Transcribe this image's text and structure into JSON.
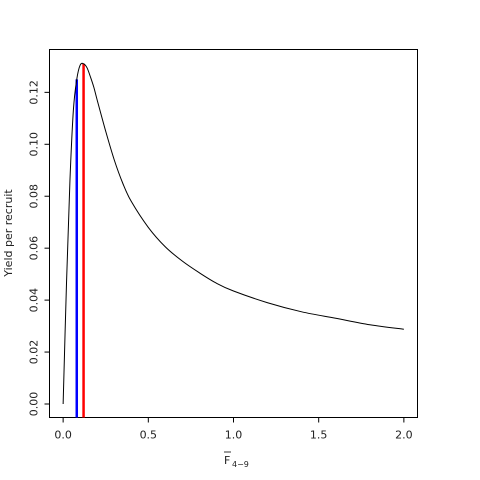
{
  "chart_data": {
    "type": "line",
    "title": "",
    "ylabel": "Yield per recruit",
    "xlabel": {
      "base": "F",
      "overline": true,
      "subscript": "4−9"
    },
    "xlim": [
      -0.08,
      2.08
    ],
    "ylim": [
      -0.0052,
      0.1365
    ],
    "x_ticks": [
      0,
      0.5,
      1,
      1.5,
      2
    ],
    "x_tick_labels": [
      "0.0",
      "0.5",
      "1.0",
      "1.5",
      "2.0"
    ],
    "y_ticks": [
      0,
      0.02,
      0.04,
      0.06,
      0.08,
      0.1,
      0.12
    ],
    "y_tick_labels": [
      "0.00",
      "0.02",
      "0.04",
      "0.06",
      "0.08",
      "0.10",
      "0.12"
    ],
    "grid": false,
    "series": [
      {
        "color": "#000000",
        "x": [
          0,
          0.02,
          0.04,
          0.06,
          0.08,
          0.1,
          0.12,
          0.14,
          0.16,
          0.18,
          0.2,
          0.25,
          0.3,
          0.35,
          0.4,
          0.5,
          0.6,
          0.7,
          0.8,
          0.9,
          1.0,
          1.2,
          1.4,
          1.6,
          1.8,
          2.0
        ],
        "y": [
          0.0,
          0.047,
          0.086,
          0.113,
          0.125,
          0.1305,
          0.131,
          0.1295,
          0.126,
          0.122,
          0.117,
          0.105,
          0.094,
          0.085,
          0.078,
          0.068,
          0.0605,
          0.055,
          0.0505,
          0.0465,
          0.0435,
          0.039,
          0.0355,
          0.033,
          0.0305,
          0.0288
        ]
      }
    ],
    "reference_lines": [
      {
        "color": "#0000ff",
        "x": 0.08,
        "y_top": 0.125
      },
      {
        "color": "#ff0000",
        "x": 0.12,
        "y_top": 0.131
      }
    ]
  }
}
